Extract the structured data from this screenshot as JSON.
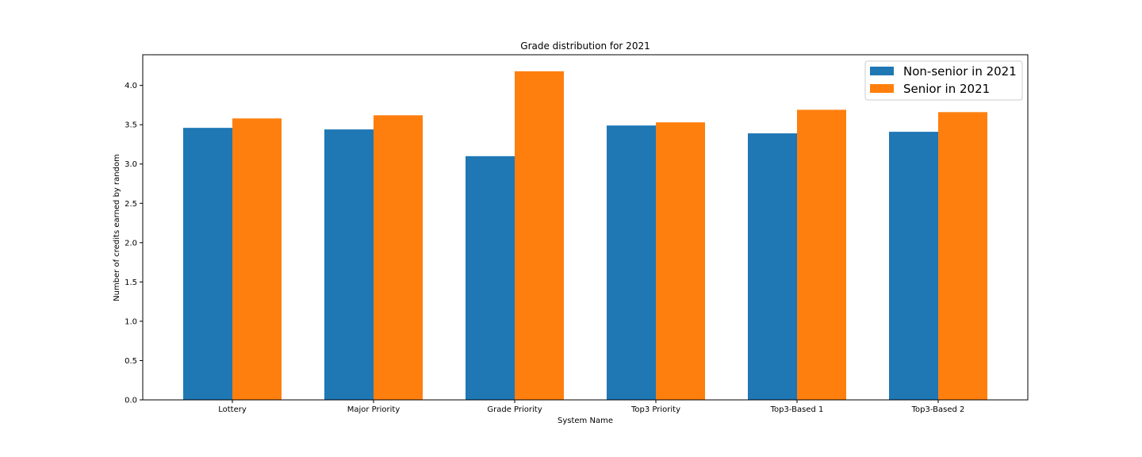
{
  "chart_data": {
    "type": "bar",
    "title": "Grade distribution for 2021",
    "xlabel": "System Name",
    "ylabel": "Number of credits earned by random",
    "categories": [
      "Lottery",
      "Major Priority",
      "Grade Priority",
      "Top3 Priority",
      "Top3-Based 1",
      "Top3-Based 2"
    ],
    "series": [
      {
        "name": "Non-senior in 2021",
        "color": "#1f77b4",
        "values": [
          3.46,
          3.44,
          3.1,
          3.49,
          3.39,
          3.41
        ]
      },
      {
        "name": "Senior in 2021",
        "color": "#ff7f0e",
        "values": [
          3.58,
          3.62,
          4.18,
          3.53,
          3.69,
          3.66
        ]
      }
    ],
    "ylim": [
      0,
      4.39
    ],
    "yticks": [
      "0.0",
      "0.5",
      "1.0",
      "1.5",
      "2.0",
      "2.5",
      "3.0",
      "3.5",
      "4.0"
    ],
    "legend_position": "top-right",
    "grid": false
  }
}
